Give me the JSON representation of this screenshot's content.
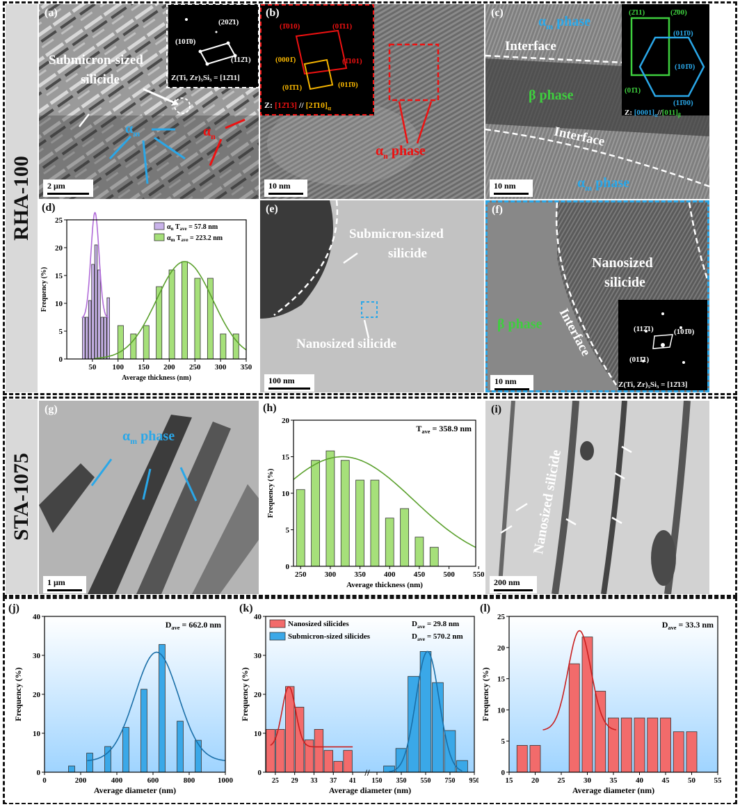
{
  "sections": {
    "top_label": "RHA-100",
    "middle_label": "STA-1075"
  },
  "panels": {
    "a": {
      "label": "(a)",
      "scale": "2 μm",
      "text_1": "Submicron-sized",
      "text_2": "silicide",
      "alpha_m": "α",
      "alpha_m_sub": "m",
      "alpha_n": "α",
      "alpha_n_sub": "n",
      "saed": {
        "s1": "(202̄1)",
        "s2": "(101̄0)",
        "s3": "(112̄1)",
        "zone": "Z(Ti, Zr)₅Si₃ = [12̄11]"
      }
    },
    "b": {
      "label": "(b)",
      "scale": "10 nm",
      "phase": "α",
      "phase_sub": "n",
      "phase_word": "phase",
      "fft": {
        "p1": "(1̄010)",
        "p2": "(01̄11)",
        "p3": "(0001̄)",
        "p4": "(1̄101)",
        "p5": "(01̄1̄1)",
        "p6": "(011̄0)",
        "zone_pre": "Z:",
        "zone_a": "[12̄13]",
        "zone_mid": "//",
        "zone_b": "[21̄10]",
        "zone_b_sub": "α"
      }
    },
    "c": {
      "label": "(c)",
      "scale": "10 nm",
      "top_phase": "α",
      "top_phase_sub": "m",
      "top_word": "phase",
      "interface_1": "Interface",
      "beta": "β phase",
      "interface_2": "Interface",
      "bottom_phase": "α",
      "bottom_phase_sub": "m",
      "bottom_word": "phase",
      "fft": {
        "p1": "(2̄11)",
        "p2": "(2̄00)",
        "p3": "(011̄0)",
        "p4": "(101̄0)",
        "p5": "(01̄1)",
        "p6": "(11̄00)",
        "zone_pre": "Z:",
        "zone_a": "[0001]",
        "zone_a_sub": "α",
        "zone_mid": "//",
        "zone_b": "[011]",
        "zone_b_sub": "β"
      }
    },
    "d": {
      "label": "(d)"
    },
    "e": {
      "label": "(e)",
      "scale": "100 nm",
      "text_1": "Submicron-sized",
      "text_2": "silicide",
      "text_3": "Nanosized  silicide"
    },
    "f": {
      "label": "(f)",
      "scale": "10 nm",
      "beta": "β phase",
      "interface": "Interface",
      "text_1": "Nanosized",
      "text_2": "silicide",
      "fft": {
        "p1": "(112̄1)",
        "p2": "(101̄0)",
        "p3": "(011̄1)",
        "zone": "Z(Ti, Zr)₅Si₃ = [12̄13]"
      }
    },
    "g": {
      "label": "(g)",
      "scale": "1 μm",
      "phase": "α",
      "phase_sub": "m",
      "phase_word": "phase"
    },
    "h": {
      "label": "(h)"
    },
    "i": {
      "label": "(i)",
      "scale": "200 nm",
      "text": "Nanosized  silicide"
    },
    "j": {
      "label": "(j)"
    },
    "k": {
      "label": "(k)"
    },
    "l": {
      "label": "(l)"
    }
  },
  "chart_data": [
    {
      "id": "d",
      "type": "bar",
      "xlabel": "Average thickness (nm)",
      "ylabel": "Frequency (%)",
      "xlim": [
        0,
        350
      ],
      "ylim": [
        0,
        25
      ],
      "xticks": [
        50,
        100,
        150,
        200,
        250,
        300,
        350
      ],
      "yticks": [
        0,
        5,
        10,
        15,
        20,
        25
      ],
      "legend_position": "top-right",
      "series": [
        {
          "name": "α",
          "name_sub": "n",
          "stat_label": "T",
          "stat_sub": "ave",
          "stat_value": "= 57.8 nm",
          "color": "#c9b3ea",
          "x": [
            33,
            39,
            45,
            51,
            57,
            63,
            69,
            75,
            81
          ],
          "values": [
            7.5,
            7.5,
            10.5,
            17,
            20.5,
            16,
            7.5,
            7.5,
            11
          ],
          "bar_width": 5,
          "fit": {
            "mu": 55,
            "sigma": 8,
            "amp": 19,
            "base": 7.3
          }
        },
        {
          "name": "α",
          "name_sub": "m",
          "stat_label": "T",
          "stat_sub": "ave",
          "stat_value": "= 223.2 nm",
          "color": "#a6e07a",
          "x": [
            105,
            130,
            155,
            180,
            205,
            230,
            255,
            280,
            305,
            330
          ],
          "values": [
            6,
            4.5,
            6,
            13,
            16,
            17.5,
            14.5,
            14.5,
            4.5,
            4.5
          ],
          "bar_width": 11,
          "fit": {
            "mu": 230,
            "sigma": 55,
            "amp": 17.5,
            "base": 0
          }
        }
      ]
    },
    {
      "id": "h",
      "type": "bar",
      "xlabel": "Average thickness (nm)",
      "ylabel": "Frequency (%)",
      "xlim": [
        238,
        545
      ],
      "ylim": [
        0,
        20
      ],
      "xticks": [
        250,
        300,
        350,
        400,
        450,
        500,
        550
      ],
      "yticks": [
        0,
        5,
        10,
        15,
        20
      ],
      "annotation": {
        "label": "T",
        "sub": "ave",
        "value": "= 358.9 nm"
      },
      "series": [
        {
          "color": "#a6e07a",
          "x": [
            250,
            275,
            300,
            325,
            350,
            375,
            400,
            425,
            450,
            475,
            500,
            525
          ],
          "values": [
            10.5,
            14.5,
            15.8,
            14.5,
            11.8,
            11.8,
            6.6,
            7.9,
            4,
            2.6,
            0,
            0
          ],
          "bar_width": 14,
          "fit": {
            "mu": 320,
            "sigma": 120,
            "amp": 15,
            "base": 0
          }
        }
      ]
    },
    {
      "id": "j",
      "type": "bar",
      "xlabel": "Average diameter (nm)",
      "ylabel": "Frequency (%)",
      "xlim": [
        0,
        1000
      ],
      "ylim": [
        0,
        40
      ],
      "xticks": [
        0,
        200,
        400,
        600,
        800,
        1000
      ],
      "xtick_labels": [
        "0",
        "200",
        "400",
        "600",
        "800",
        "1000"
      ],
      "yticks": [
        0,
        10,
        20,
        30,
        40
      ],
      "annotation": {
        "label": "D",
        "sub": "ave",
        "value": "= 662.0 nm"
      },
      "series": [
        {
          "color": "#3aa8e8",
          "x": [
            150,
            250,
            350,
            450,
            550,
            650,
            750,
            850
          ],
          "values": [
            1.6,
            4.9,
            6.6,
            11.5,
            21.3,
            32.8,
            13.1,
            8.2
          ],
          "bar_width": 34,
          "fit": {
            "mu": 620,
            "sigma": 120,
            "amp": 28,
            "base": 2.8
          }
        }
      ]
    },
    {
      "id": "k",
      "type": "bar",
      "xlabel": "Average diameter (nm)",
      "ylabel": "Frequency (%)",
      "ylim": [
        0,
        40
      ],
      "yticks": [
        0,
        10,
        20,
        30,
        40
      ],
      "xtick_labels": [
        "25",
        "29",
        "33",
        "37",
        "41",
        "150",
        "350",
        "550",
        "750",
        "950"
      ],
      "legend_position": "top",
      "series": [
        {
          "name": "Nanosized silicides",
          "stat_label": "D",
          "stat_sub": "ave",
          "stat_value": "= 29.8 nm",
          "color": "#f26b6b",
          "x": [
            24,
            26,
            28,
            30,
            32,
            34,
            36,
            38,
            40
          ],
          "values": [
            11,
            11,
            22,
            16.7,
            8.3,
            11,
            5.6,
            2.8,
            5.6
          ]
        },
        {
          "name": "Submicron-sized silicides",
          "stat_label": "D",
          "stat_sub": "ave",
          "stat_value": "= 570.2 nm",
          "color": "#3aa8e8",
          "x": [
            250,
            350,
            450,
            550,
            650,
            750,
            850
          ],
          "values": [
            1.6,
            6.1,
            24.6,
            31,
            23,
            10.7,
            3
          ]
        }
      ]
    },
    {
      "id": "l",
      "type": "bar",
      "xlabel": "Average diameter (nm)",
      "ylabel": "Frequency (%)",
      "xlim": [
        15,
        55
      ],
      "ylim": [
        0,
        25
      ],
      "xticks": [
        15,
        20,
        25,
        30,
        35,
        40,
        45,
        50,
        55
      ],
      "yticks": [
        0,
        5,
        10,
        15,
        20,
        25
      ],
      "annotation": {
        "label": "D",
        "sub": "ave",
        "value": "= 33.3 nm"
      },
      "series": [
        {
          "color": "#f26b6b",
          "x": [
            17.5,
            20,
            25,
            27.5,
            30,
            32.5,
            35,
            37.5,
            40,
            42.5,
            45,
            47.5,
            50
          ],
          "values": [
            4.3,
            4.3,
            0,
            17.4,
            21.7,
            13,
            8.7,
            8.7,
            8.7,
            8.7,
            8.7,
            6.5,
            6.5
          ],
          "bar_width": 2,
          "fit": {
            "mu": 28.5,
            "sigma": 2.2,
            "amp": 16,
            "base": 6.7
          }
        }
      ]
    }
  ]
}
